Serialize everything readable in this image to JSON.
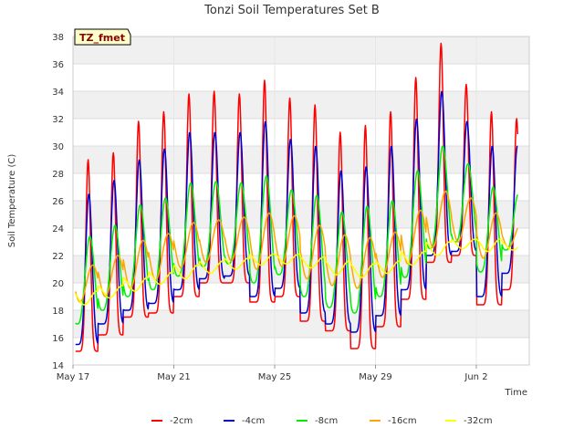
{
  "chart_data": {
    "type": "line",
    "title": "Tonzi Soil Temperatures Set B",
    "xlabel": "Time",
    "ylabel": "Soil Temperature (C)",
    "annotation": "TZ_fmet",
    "ylim": [
      14,
      38
    ],
    "y_ticks": [
      14,
      16,
      18,
      20,
      22,
      24,
      26,
      28,
      30,
      32,
      34,
      36,
      38
    ],
    "xlim_days": [
      0,
      18.1
    ],
    "x_ticks": [
      {
        "day": 0,
        "label": "May 17"
      },
      {
        "day": 4,
        "label": "May 21"
      },
      {
        "day": 8,
        "label": "May 25"
      },
      {
        "day": 12,
        "label": "May 29"
      },
      {
        "day": 16,
        "label": "Jun 2"
      }
    ],
    "grid": true,
    "legend_position": "bottom",
    "days": [
      0,
      1,
      2,
      3,
      4,
      5,
      6,
      7,
      8,
      9,
      10,
      11,
      12,
      13,
      14,
      15,
      16,
      17
    ],
    "series": [
      {
        "name": "-2cm",
        "color": "#ff0000",
        "phase": 0.6,
        "sharp": 6,
        "max": [
          29.0,
          29.5,
          31.8,
          32.5,
          33.8,
          34.0,
          33.8,
          34.8,
          33.5,
          33.0,
          31.0,
          31.5,
          32.5,
          35.0,
          37.5,
          34.5,
          32.5,
          32.0
        ],
        "min": [
          15.0,
          16.2,
          17.5,
          17.8,
          19.0,
          20.0,
          20.0,
          18.6,
          19.0,
          17.2,
          16.5,
          15.2,
          16.8,
          18.8,
          21.5,
          22.0,
          18.4,
          19.5
        ]
      },
      {
        "name": "-4cm",
        "color": "#0000cc",
        "phase": 0.63,
        "sharp": 3,
        "max": [
          26.5,
          27.5,
          29.0,
          29.8,
          31.0,
          31.0,
          31.0,
          31.8,
          30.5,
          30.0,
          28.2,
          28.5,
          30.0,
          32.0,
          34.0,
          31.8,
          30.0,
          30.0
        ],
        "min": [
          15.5,
          17.0,
          18.0,
          18.5,
          19.5,
          20.3,
          20.5,
          19.0,
          19.6,
          17.8,
          17.0,
          16.4,
          17.6,
          19.5,
          22.0,
          22.3,
          19.0,
          20.7
        ]
      },
      {
        "name": "-8cm",
        "color": "#00ee00",
        "phase": 0.67,
        "sharp": 1.5,
        "max": [
          23.4,
          24.2,
          25.7,
          26.2,
          27.3,
          27.4,
          27.3,
          27.8,
          26.8,
          26.4,
          25.2,
          25.6,
          26.0,
          28.2,
          30.0,
          28.7,
          27.0,
          26.5
        ],
        "min": [
          17.0,
          18.0,
          19.0,
          19.5,
          20.5,
          21.2,
          21.4,
          20.0,
          20.6,
          19.0,
          18.2,
          17.8,
          19.0,
          20.4,
          22.5,
          23.0,
          20.8,
          22.4
        ]
      },
      {
        "name": "-16cm",
        "color": "#ffa500",
        "phase": 0.78,
        "sharp": 1,
        "max": [
          21.3,
          22.0,
          23.1,
          23.6,
          24.4,
          24.6,
          24.8,
          25.1,
          24.9,
          24.2,
          23.5,
          23.3,
          23.7,
          25.3,
          26.7,
          26.2,
          25.1,
          24.3
        ],
        "min": [
          18.6,
          19.0,
          19.6,
          20.2,
          21.1,
          21.5,
          21.6,
          21.0,
          21.2,
          20.3,
          19.8,
          19.6,
          20.4,
          21.4,
          22.6,
          23.0,
          21.8,
          22.6
        ]
      },
      {
        "name": "-32cm",
        "color": "#ffff00",
        "phase": 0.95,
        "sharp": 1,
        "max": [
          19.4,
          19.8,
          20.4,
          20.8,
          21.3,
          21.6,
          21.8,
          22.1,
          22.1,
          21.9,
          21.6,
          21.4,
          21.6,
          22.3,
          23.0,
          23.2,
          23.2,
          23.0
        ],
        "min": [
          18.4,
          18.9,
          19.4,
          19.9,
          20.3,
          20.7,
          21.0,
          21.3,
          21.4,
          21.1,
          20.6,
          20.4,
          20.7,
          21.3,
          22.0,
          22.5,
          22.3,
          22.4
        ]
      }
    ]
  }
}
